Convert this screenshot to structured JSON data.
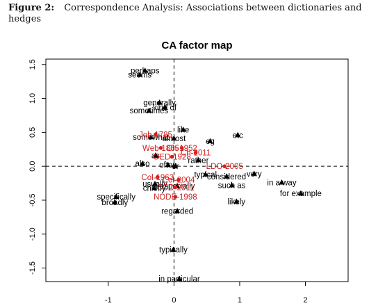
{
  "figure": {
    "label": "Figure 2:",
    "caption": "Correspondence Analysis: Associations between dictionaries and hedges"
  },
  "colors": {
    "hedge": "#000000",
    "dictionary": "#d22020",
    "axis": "#000000"
  },
  "chart_data": {
    "type": "scatter",
    "title": "CA factor map",
    "xlabel": "",
    "ylabel": "",
    "xlim": [
      -1.95,
      2.65
    ],
    "ylim": [
      -1.7,
      1.58
    ],
    "xticks": [
      -1,
      0,
      1,
      2
    ],
    "yticks": [
      -1.5,
      -1.0,
      -0.5,
      0.0,
      0.5,
      1.0,
      1.5
    ],
    "xtick_labels": [
      "-1",
      "0",
      "1",
      "2"
    ],
    "ytick_labels": [
      "-1.5",
      "-1.0",
      "-0.5",
      "0.0",
      "0.5",
      "1.0",
      "1.5"
    ],
    "reference_lines": {
      "x": 0,
      "y": 0,
      "style": "dashed"
    },
    "series": [
      {
        "kind": "hedges",
        "marker": "triangle",
        "points": [
          {
            "label": "perhaps",
            "x": -0.44,
            "y": 1.41
          },
          {
            "label": "seems",
            "x": -0.52,
            "y": 1.35
          },
          {
            "label": "generally",
            "x": -0.22,
            "y": 0.94
          },
          {
            "label": "sometimes",
            "x": -0.38,
            "y": 0.82
          },
          {
            "label": "kind of",
            "x": -0.14,
            "y": 0.87
          },
          {
            "label": "like",
            "x": 0.14,
            "y": 0.54
          },
          {
            "label": "almost",
            "x": 0.0,
            "y": 0.41
          },
          {
            "label": "etc",
            "x": 0.97,
            "y": 0.46
          },
          {
            "label": "somewhat",
            "x": -0.35,
            "y": 0.43
          },
          {
            "label": "eg",
            "x": 0.55,
            "y": 0.37
          },
          {
            "label": "as",
            "x": -0.28,
            "y": 0.16
          },
          {
            "label": "rather",
            "x": 0.37,
            "y": 0.09
          },
          {
            "label": "also",
            "x": -0.48,
            "y": 0.04
          },
          {
            "label": "often",
            "x": -0.09,
            "y": 0.02
          },
          {
            "label": "or",
            "x": 0.02,
            "y": 0.0
          },
          {
            "label": "typical",
            "x": 0.48,
            "y": -0.12
          },
          {
            "label": "considered",
            "x": 0.8,
            "y": -0.15
          },
          {
            "label": "very",
            "x": 1.22,
            "y": -0.11
          },
          {
            "label": "such as",
            "x": 0.88,
            "y": -0.28
          },
          {
            "label": "in a way",
            "x": 1.64,
            "y": -0.24
          },
          {
            "label": "usually",
            "x": -0.29,
            "y": -0.26
          },
          {
            "label": "chiefly",
            "x": -0.3,
            "y": -0.32
          },
          {
            "label": "especially",
            "x": 0.05,
            "y": -0.29
          },
          {
            "label": "for example",
            "x": 1.93,
            "y": -0.4
          },
          {
            "label": "specifically",
            "x": -0.88,
            "y": -0.45
          },
          {
            "label": "broadly",
            "x": -0.9,
            "y": -0.53
          },
          {
            "label": "likely",
            "x": 0.95,
            "y": -0.52
          },
          {
            "label": "regarded",
            "x": 0.05,
            "y": -0.66
          },
          {
            "label": "typically",
            "x": -0.01,
            "y": -1.23
          },
          {
            "label": "in particular",
            "x": 0.08,
            "y": -1.66
          }
        ]
      },
      {
        "kind": "dictionaries",
        "marker": "circle",
        "points": [
          {
            "label": "Joh-1785",
            "x": -0.28,
            "y": 0.47
          },
          {
            "label": "Web-1865",
            "x": -0.2,
            "y": 0.27
          },
          {
            "label": "Ch-1952",
            "x": 0.12,
            "y": 0.27
          },
          {
            "label": "Ch-2011",
            "x": 0.33,
            "y": 0.2
          },
          {
            "label": "OED-1928",
            "x": -0.03,
            "y": 0.14
          },
          {
            "label": "LDO-2005",
            "x": 0.77,
            "y": 0.0
          },
          {
            "label": "Col-1963",
            "x": -0.25,
            "y": -0.16
          },
          {
            "label": "Col-2004",
            "x": 0.07,
            "y": -0.2
          },
          {
            "label": "COD-2011",
            "x": 0.02,
            "y": -0.31
          },
          {
            "label": "NODE-1998",
            "x": 0.02,
            "y": -0.45
          }
        ]
      }
    ]
  }
}
